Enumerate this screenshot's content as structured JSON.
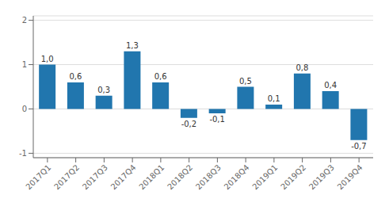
{
  "chart_data": {
    "type": "bar",
    "categories": [
      "2017Q1",
      "2017Q2",
      "2017Q3",
      "2017Q4",
      "2018Q1",
      "2018Q2",
      "2018Q3",
      "2018Q4",
      "2019Q1",
      "2019Q2",
      "2019Q3",
      "2019Q4"
    ],
    "values": [
      1.0,
      0.6,
      0.3,
      1.3,
      0.6,
      -0.2,
      -0.1,
      0.5,
      0.1,
      0.8,
      0.4,
      -0.7
    ],
    "value_labels": [
      "1,0",
      "0,6",
      "0,3",
      "1,3",
      "0,6",
      "-0,2",
      "-0,1",
      "0,5",
      "0,1",
      "0,8",
      "0,4",
      "-0,7"
    ],
    "color": "#2176ae",
    "ylim": [
      -1.1,
      2.1
    ],
    "yticks": [
      -1,
      0,
      1,
      2
    ],
    "grid": true,
    "data_labels": true
  }
}
